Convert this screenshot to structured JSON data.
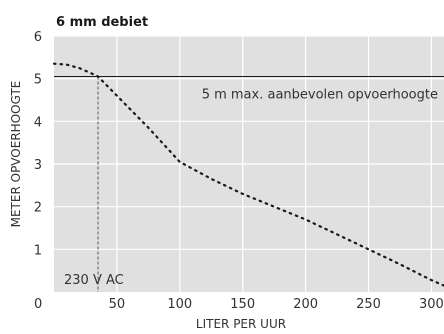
{
  "chart_data": {
    "type": "line",
    "title": "6 mm debiet",
    "xlabel": "LITER PER UUR",
    "ylabel": "METER OPVOERHOOGTE",
    "xlim": [
      0,
      310
    ],
    "ylim": [
      0,
      6
    ],
    "xticks": [
      0,
      50,
      100,
      150,
      200,
      250,
      300
    ],
    "yticks": [
      1,
      2,
      3,
      4,
      5,
      6
    ],
    "grid": true,
    "background": "#e0e0e0",
    "gridColor": "#ffffff",
    "series": [
      {
        "style": "dotted",
        "color": "#1a1a1a",
        "x": [
          0,
          10,
          20,
          30,
          35,
          50,
          75,
          100,
          125,
          150,
          175,
          200,
          225,
          250,
          275,
          300,
          310
        ],
        "y": [
          5.35,
          5.33,
          5.25,
          5.12,
          5.05,
          4.6,
          3.85,
          3.05,
          2.65,
          2.3,
          2.0,
          1.7,
          1.35,
          1.0,
          0.65,
          0.28,
          0.15
        ]
      }
    ],
    "annotations": [
      {
        "type": "hline",
        "y": 5.05,
        "style": "solid",
        "color": "#1a1a1a",
        "text": "5 m max. aanbevolen opvoerhoogte"
      },
      {
        "type": "vline",
        "x": 35,
        "y": 5.05,
        "style": "dashed",
        "color": "#555555",
        "text": "230 V AC"
      }
    ]
  }
}
